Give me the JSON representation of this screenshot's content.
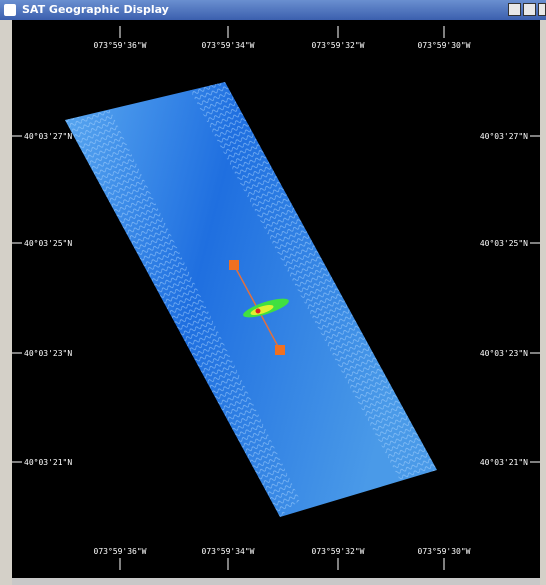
{
  "window": {
    "title": "SAT Geographic Display"
  },
  "map": {
    "top_labels": [
      "073°59'36\"W",
      "073°59'34\"W",
      "073°59'32\"W",
      "073°59'30\"W"
    ],
    "bottom_labels": [
      "073°59'36\"W",
      "073°59'34\"W",
      "073°59'32\"W",
      "073°59'30\"W"
    ],
    "left_labels": [
      "40°03'27\"N",
      "40°03'25\"N",
      "40°03'23\"N",
      "40°03'21\"N"
    ],
    "right_labels": [
      "40°03'27\"N",
      "40°03'25\"N",
      "40°03'23\"N",
      "40°03'21\"N"
    ]
  }
}
